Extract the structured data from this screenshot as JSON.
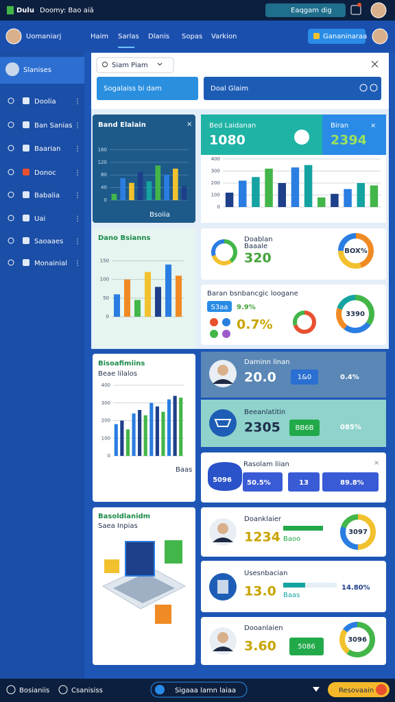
{
  "topbar": {
    "brand": "Dulu",
    "title": "Doomy: Bao aiä",
    "pill": "Eaqgam dig"
  },
  "header": {
    "title": "Uomaniarj",
    "nav": [
      "Haim",
      "Sarlas",
      "Dlanis",
      "Sopas",
      "Varkion"
    ],
    "button": "Gananinaraa"
  },
  "sidebar": {
    "active": "Slanises",
    "items": [
      "Doolia",
      "Ban Sanias",
      "Baarian",
      "Donoc",
      "Babalia",
      "Uai",
      "Saoaaes",
      "Monainial"
    ]
  },
  "search": {
    "placeholder": "Siam Piam",
    "tabs": [
      "Sogalaiss bi dam",
      "Doal Glaim"
    ]
  },
  "cards": {
    "band": {
      "title": "Band Elalain",
      "note": "Bsoiia"
    },
    "dano": {
      "title": "Dano Bsianns"
    },
    "biso": {
      "title": "Bisoafimiins",
      "subtitle": "Beae lilalos",
      "note": "Baas"
    },
    "basold": {
      "title": "Basoldlanidm",
      "subtitle": "Saea Inpias"
    },
    "bed": {
      "title": "Bed Laidanan",
      "value": "1080"
    },
    "biran": {
      "title": "Biran",
      "value": "2394"
    },
    "doablan": {
      "title": "Doablan",
      "subtitle": "Baaale",
      "value": "320",
      "ring": "BOX%"
    },
    "baran": {
      "title": "Baran bsnbancgic loogane",
      "pill": "S3aa",
      "rate1": "9.9%",
      "rate2": "0.7%",
      "ring": "3390"
    },
    "daminn": {
      "title": "Daminn linan",
      "value": "20.0",
      "pill": "1&0",
      "rate": "0.4%"
    },
    "beean": {
      "title": "Beeanlatitin",
      "value": "2305",
      "pill": "BB6B",
      "rate": "085%"
    },
    "rasolam": {
      "title": "Rasolam liian",
      "pills": [
        "5096",
        "50.5%",
        "13",
        "89.8%"
      ]
    },
    "doank": {
      "title": "Doanklaier",
      "value": "1234",
      "note": "Baoo",
      "ring": "3097"
    },
    "usesn": {
      "title": "Usesnbacian",
      "value": "13.0",
      "note": "Baas",
      "rate": "14.80%"
    },
    "dooan": {
      "title": "Dooanlaien",
      "value": "3.60",
      "pill": "5086",
      "ring": "3096"
    }
  },
  "charts": [
    {
      "type": "bar",
      "ylim": [
        0,
        200
      ],
      "yticks": [
        0,
        40,
        80,
        120,
        160
      ],
      "values": [
        20,
        70,
        55,
        90,
        60,
        110,
        80,
        100,
        45
      ],
      "colors": [
        "#43b649",
        "#2a7de1",
        "#f2c12e",
        "#1e3f8a",
        "#14a3a0"
      ]
    },
    {
      "type": "bar",
      "ylim": [
        0,
        160
      ],
      "yticks": [
        0,
        50,
        100,
        150
      ],
      "values": [
        60,
        100,
        45,
        120,
        80,
        140,
        110
      ],
      "colors": [
        "#2a7de1",
        "#f08a24",
        "#43b649",
        "#f2c12e",
        "#1e3f8a"
      ]
    },
    {
      "type": "bar",
      "ylim": [
        0,
        400
      ],
      "yticks": [
        0,
        100,
        200,
        300,
        400
      ],
      "values": [
        180,
        200,
        150,
        240,
        260,
        230,
        300,
        280,
        250,
        320,
        340,
        330
      ],
      "colors": [
        "#2a7de1",
        "#1e3f8a",
        "#43b649"
      ]
    },
    {
      "type": "bar",
      "ylim": [
        0,
        400
      ],
      "yticks": [
        0,
        100,
        200,
        300,
        400
      ],
      "values": [
        120,
        220,
        250,
        320,
        200,
        330,
        350,
        80,
        110,
        150,
        200,
        180
      ],
      "colors": [
        "#1e3f8a",
        "#2a7de1",
        "#14a3a0",
        "#43b649"
      ]
    }
  ],
  "rings": [
    {
      "values": [
        40,
        30,
        30
      ],
      "colors": [
        "#43b649",
        "#f2c12e",
        "#2a7de1"
      ]
    },
    {
      "values": [
        45,
        30,
        25
      ],
      "colors": [
        "#f08a24",
        "#f2c12e",
        "#2a7de1"
      ]
    },
    {
      "values": [
        70,
        30
      ],
      "colors": [
        "#e8502f",
        "#43b649"
      ]
    },
    {
      "values": [
        35,
        25,
        20,
        20
      ],
      "colors": [
        "#43b649",
        "#2a7de1",
        "#f08a24",
        "#14a3a0"
      ]
    },
    {
      "values": [
        50,
        30,
        20
      ],
      "colors": [
        "#f2c12e",
        "#2a7de1",
        "#43b649"
      ]
    },
    {
      "values": [
        60,
        25,
        15
      ],
      "colors": [
        "#43b649",
        "#f2c12e",
        "#2a7de1"
      ]
    }
  ],
  "bottombar": {
    "left": [
      "Bosianiis",
      "Csanisiss"
    ],
    "search": "Sigaaa lamn laiaa",
    "button": "Resovaain"
  }
}
